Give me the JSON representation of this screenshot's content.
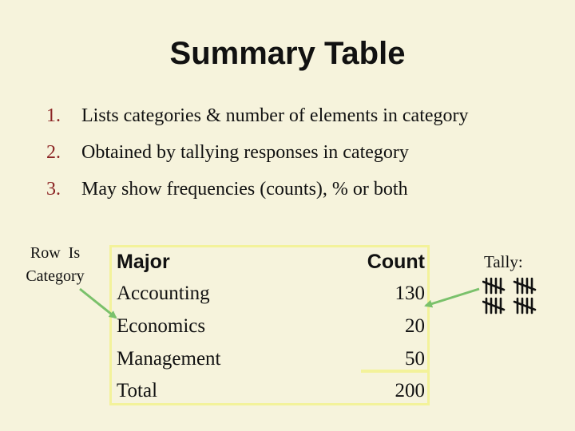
{
  "title": "Summary Table",
  "bullets": [
    {
      "num": "1.",
      "text": "Lists categories & number of elements in category"
    },
    {
      "num": "2.",
      "text": "Obtained by tallying responses in category"
    },
    {
      "num": "3.",
      "text": "May show frequencies (counts), % or both"
    }
  ],
  "side_label": {
    "line1": "Row  Is",
    "line2": "Category"
  },
  "table": {
    "headers": {
      "major": "Major",
      "count": "Count"
    },
    "rows": [
      {
        "major": "Accounting",
        "count": "130"
      },
      {
        "major": "Economics",
        "count": "20"
      },
      {
        "major": "Management",
        "count": "50"
      },
      {
        "major": "Total",
        "count": "200"
      }
    ]
  },
  "tally_label": "Tally:",
  "colors": {
    "accent": "#8c2424",
    "highlight": "#f3f29a",
    "arrow": "#7ac16b",
    "background": "#f6f3dc"
  }
}
